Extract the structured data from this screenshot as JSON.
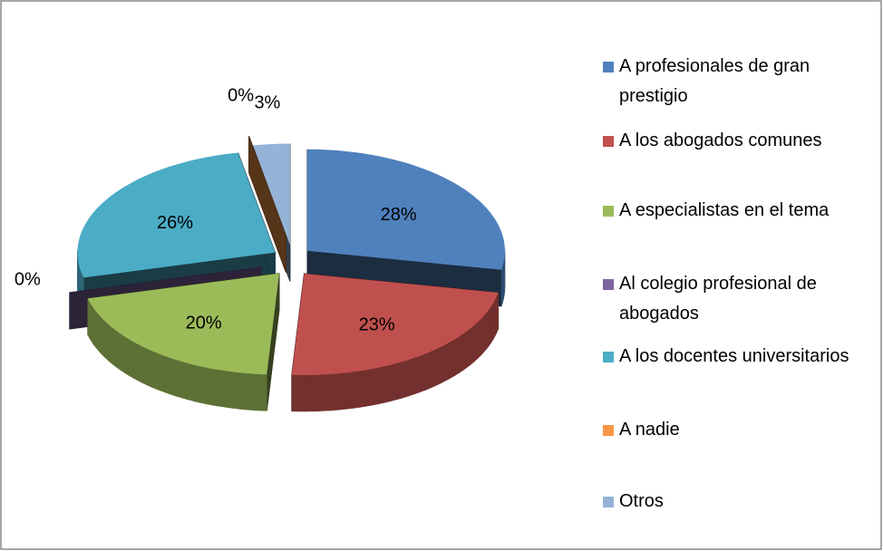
{
  "chart_data": {
    "type": "pie",
    "categories": [
      "A profesionales de gran prestigio",
      "A los abogados comunes",
      "A especialistas en el tema",
      "Al colegio profesional de abogados",
      "A los docentes universitarios",
      "A nadie",
      "Otros"
    ],
    "values": [
      28,
      23,
      20,
      0,
      26,
      0,
      3
    ],
    "value_labels": [
      "28%",
      "23%",
      "20%",
      "0%",
      "26%",
      "0%",
      "3%"
    ],
    "colors": [
      "#4f81bd",
      "#c0504d",
      "#9bbb59",
      "#8064a2",
      "#4bacc6",
      "#f79646",
      "#95b3d7"
    ],
    "legend": "right"
  }
}
